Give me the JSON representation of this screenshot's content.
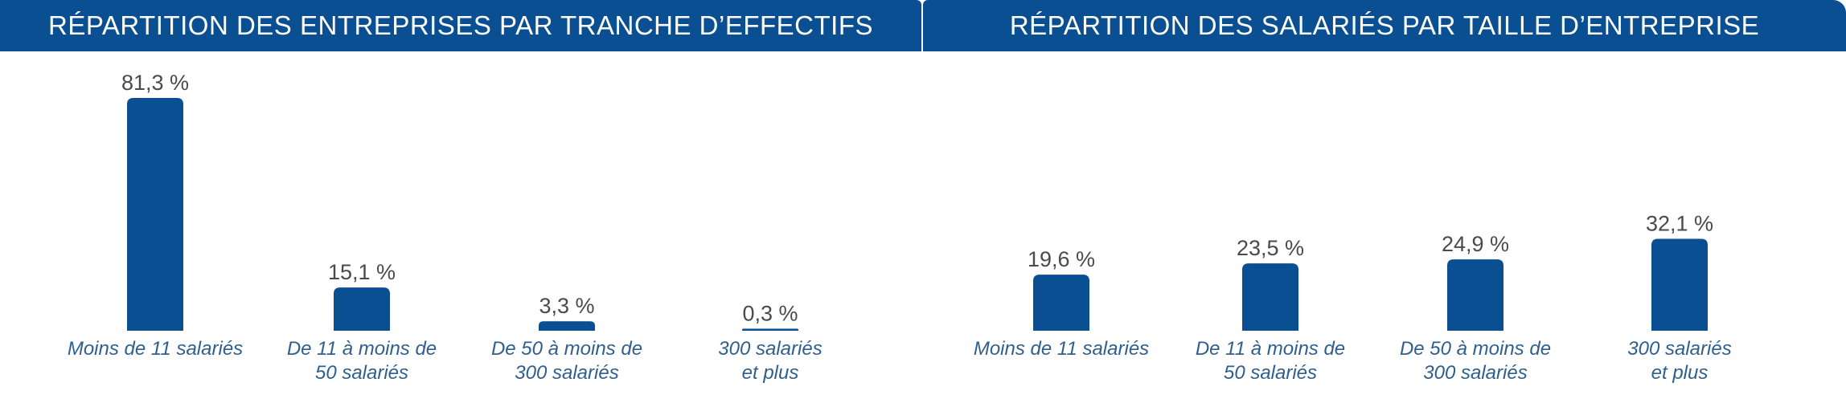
{
  "colors": {
    "bar": "#0b4f93",
    "header_bg": "#0b4f93",
    "value_text": "#4a4a4a",
    "category_text": "#2f5f8f"
  },
  "chart_data": [
    {
      "type": "bar",
      "title": "RÉPARTITION DES ENTREPRISES PAR TRANCHE D’EFFECTIFS",
      "categories": [
        [
          "Moins de 11 salariés"
        ],
        [
          "De 11 à moins de",
          "50 salariés"
        ],
        [
          "De 50 à moins de",
          "300 salariés"
        ],
        [
          "300 salariés",
          "et plus"
        ]
      ],
      "values": [
        81.3,
        15.1,
        3.3,
        0.3
      ],
      "value_labels": [
        "81,3 %",
        "15,1 %",
        "3,3 %",
        "0,3 %"
      ],
      "ylim": [
        0,
        81.3
      ],
      "grid": false
    },
    {
      "type": "bar",
      "title": "RÉPARTITION DES SALARIÉS PAR TAILLE D’ENTREPRISE",
      "categories": [
        [
          "Moins de 11 salariés"
        ],
        [
          "De 11 à moins de",
          "50 salariés"
        ],
        [
          "De 50 à moins de",
          "300 salariés"
        ],
        [
          "300 salariés",
          "et plus"
        ]
      ],
      "values": [
        19.6,
        23.5,
        24.9,
        32.1
      ],
      "value_labels": [
        "19,6 %",
        "23,5 %",
        "24,9 %",
        "32,1 %"
      ],
      "ylim": [
        0,
        81.3
      ],
      "grid": false
    }
  ]
}
